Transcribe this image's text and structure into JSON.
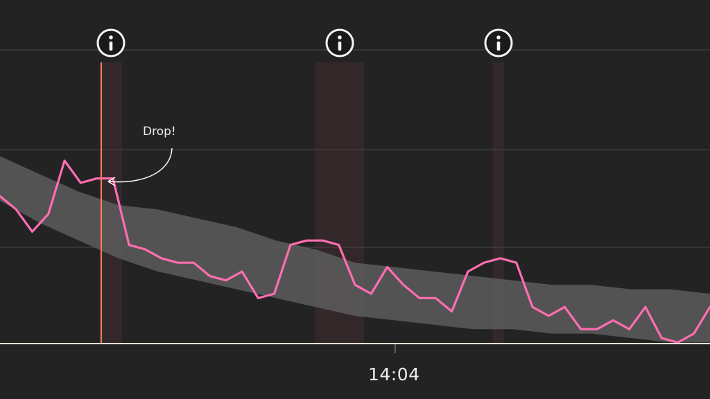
{
  "chart_data": {
    "type": "line",
    "title": "",
    "xlabel": "",
    "ylabel": "",
    "grid": true,
    "x_tick_labels": [
      "14:04"
    ],
    "y_range": [
      0,
      1
    ],
    "series": [
      {
        "color": "#ff6eb0",
        "values": [
          0.62,
          0.59,
          0.54,
          0.58,
          0.7,
          0.65,
          0.66,
          0.66,
          0.51,
          0.5,
          0.48,
          0.47,
          0.47,
          0.44,
          0.43,
          0.45,
          0.39,
          0.4,
          0.51,
          0.52,
          0.52,
          0.51,
          0.42,
          0.4,
          0.46,
          0.42,
          0.39,
          0.39,
          0.36,
          0.45,
          0.47,
          0.48,
          0.47,
          0.37,
          0.35,
          0.37,
          0.32,
          0.32,
          0.34,
          0.32,
          0.37,
          0.3,
          0.29,
          0.31,
          0.37
        ]
      }
    ],
    "band": {
      "color": "#5f5f5f",
      "upper": [
        0.71,
        0.67,
        0.63,
        0.6,
        0.59,
        0.57,
        0.55,
        0.52,
        0.5,
        0.47,
        0.46,
        0.45,
        0.44,
        0.43,
        0.42,
        0.42,
        0.41,
        0.41,
        0.4
      ],
      "lower": [
        0.61,
        0.56,
        0.52,
        0.48,
        0.45,
        0.43,
        0.41,
        0.39,
        0.37,
        0.35,
        0.34,
        0.33,
        0.32,
        0.32,
        0.31,
        0.31,
        0.3,
        0.29,
        0.29
      ]
    },
    "markers": [
      {
        "name": "info-marker-1",
        "icon": "info-icon",
        "highlight_color": "#ff7a59"
      },
      {
        "name": "info-marker-2",
        "icon": "info-icon"
      },
      {
        "name": "info-marker-3",
        "icon": "info-icon"
      }
    ],
    "annotation": {
      "text": "Drop!"
    }
  }
}
